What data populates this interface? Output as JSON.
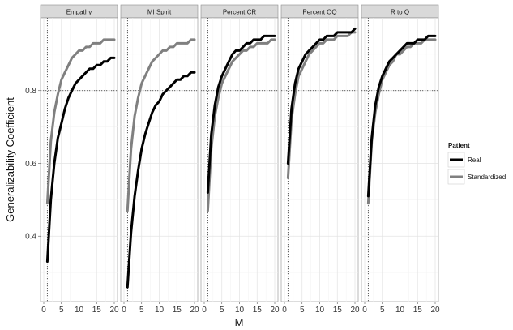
{
  "chart_data": {
    "type": "line",
    "facets": [
      "Empathy",
      "MI Spirit",
      "Percent CR",
      "Percent OQ",
      "R to Q"
    ],
    "xlabel": "M",
    "ylabel": "Generalizability Coefficient",
    "xlim": [
      0,
      20
    ],
    "ylim": [
      0.22,
      1.0
    ],
    "x_ticks": [
      "0",
      "5",
      "10",
      "15",
      "20"
    ],
    "y_ticks": [
      "0.4",
      "0.6",
      "0.8"
    ],
    "reference_lines": {
      "x": 1,
      "y": 0.8
    },
    "grid": true,
    "legend": {
      "title": "Patient",
      "position": "right",
      "entries": [
        {
          "name": "Real",
          "color": "#000000"
        },
        {
          "name": "Standardized",
          "color": "#808080"
        }
      ]
    },
    "x": [
      1,
      2,
      3,
      4,
      5,
      6,
      7,
      8,
      9,
      10,
      11,
      12,
      13,
      14,
      15,
      16,
      17,
      18,
      19,
      20
    ],
    "series": [
      {
        "facet": "Empathy",
        "name": "Real",
        "values": [
          0.33,
          0.5,
          0.6,
          0.67,
          0.71,
          0.75,
          0.78,
          0.8,
          0.82,
          0.83,
          0.84,
          0.85,
          0.86,
          0.86,
          0.87,
          0.87,
          0.88,
          0.88,
          0.89,
          0.89
        ]
      },
      {
        "facet": "Empathy",
        "name": "Standardized",
        "values": [
          0.49,
          0.66,
          0.74,
          0.79,
          0.83,
          0.85,
          0.87,
          0.89,
          0.9,
          0.91,
          0.91,
          0.92,
          0.92,
          0.93,
          0.93,
          0.93,
          0.94,
          0.94,
          0.94,
          0.94
        ]
      },
      {
        "facet": "MI Spirit",
        "name": "Real",
        "values": [
          0.26,
          0.41,
          0.51,
          0.58,
          0.64,
          0.68,
          0.71,
          0.74,
          0.76,
          0.77,
          0.79,
          0.8,
          0.81,
          0.82,
          0.83,
          0.83,
          0.84,
          0.84,
          0.85,
          0.85
        ]
      },
      {
        "facet": "MI Spirit",
        "name": "Standardized",
        "values": [
          0.47,
          0.64,
          0.73,
          0.78,
          0.82,
          0.84,
          0.86,
          0.88,
          0.89,
          0.9,
          0.91,
          0.91,
          0.92,
          0.92,
          0.93,
          0.93,
          0.93,
          0.93,
          0.94,
          0.94
        ]
      },
      {
        "facet": "Percent CR",
        "name": "Real",
        "values": [
          0.52,
          0.68,
          0.76,
          0.81,
          0.84,
          0.86,
          0.88,
          0.9,
          0.91,
          0.91,
          0.92,
          0.93,
          0.93,
          0.94,
          0.94,
          0.94,
          0.95,
          0.95,
          0.95,
          0.95
        ]
      },
      {
        "facet": "Percent CR",
        "name": "Standardized",
        "values": [
          0.47,
          0.64,
          0.73,
          0.78,
          0.82,
          0.84,
          0.86,
          0.88,
          0.89,
          0.9,
          0.91,
          0.91,
          0.92,
          0.92,
          0.93,
          0.93,
          0.93,
          0.93,
          0.94,
          0.94
        ]
      },
      {
        "facet": "Percent OQ",
        "name": "Real",
        "values": [
          0.6,
          0.75,
          0.82,
          0.86,
          0.88,
          0.9,
          0.91,
          0.92,
          0.93,
          0.94,
          0.94,
          0.95,
          0.95,
          0.95,
          0.96,
          0.96,
          0.96,
          0.96,
          0.96,
          0.97
        ]
      },
      {
        "facet": "Percent OQ",
        "name": "Standardized",
        "values": [
          0.56,
          0.72,
          0.79,
          0.84,
          0.86,
          0.88,
          0.9,
          0.91,
          0.92,
          0.93,
          0.93,
          0.94,
          0.94,
          0.94,
          0.95,
          0.95,
          0.95,
          0.95,
          0.96,
          0.96
        ]
      },
      {
        "facet": "R to Q",
        "name": "Real",
        "values": [
          0.51,
          0.67,
          0.76,
          0.81,
          0.84,
          0.86,
          0.88,
          0.89,
          0.9,
          0.91,
          0.92,
          0.93,
          0.93,
          0.93,
          0.94,
          0.94,
          0.94,
          0.95,
          0.95,
          0.95
        ]
      },
      {
        "facet": "R to Q",
        "name": "Standardized",
        "values": [
          0.49,
          0.66,
          0.74,
          0.79,
          0.83,
          0.85,
          0.87,
          0.88,
          0.9,
          0.9,
          0.91,
          0.92,
          0.92,
          0.93,
          0.93,
          0.93,
          0.94,
          0.94,
          0.94,
          0.94
        ]
      }
    ]
  }
}
